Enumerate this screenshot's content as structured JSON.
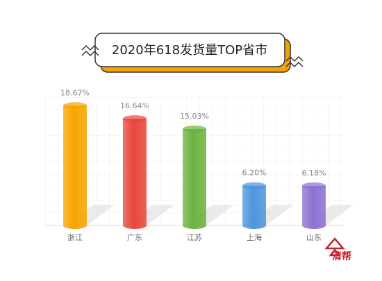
{
  "chart_data": {
    "type": "bar",
    "title": "2020年618发货量TOP省市",
    "categories": [
      "浙江",
      "广东",
      "江苏",
      "上海",
      "山东"
    ],
    "values": [
      18.67,
      16.64,
      15.03,
      6.2,
      6.18
    ],
    "value_labels": [
      "18.67%",
      "16.64%",
      "15.03%",
      "6.20%",
      "6.18%"
    ],
    "colors": [
      "#f7a400",
      "#e8473a",
      "#6bb33f",
      "#4d95dc",
      "#8c72d2"
    ],
    "ylim": [
      0,
      20
    ],
    "watermark": "清帮"
  }
}
